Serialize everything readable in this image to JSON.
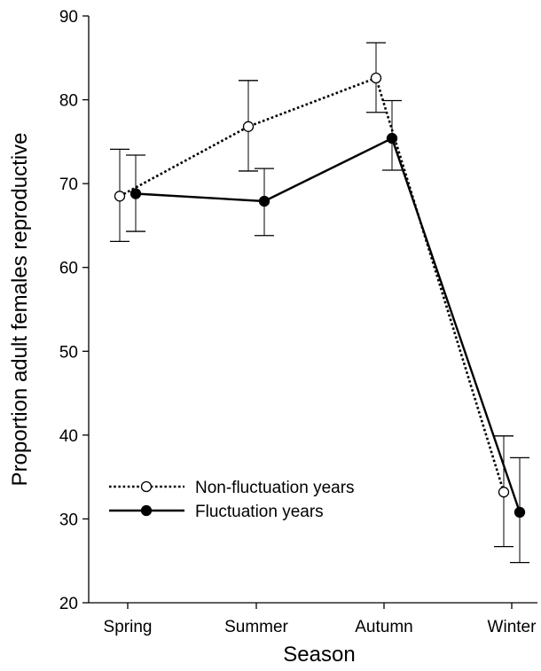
{
  "chart_data": {
    "type": "line",
    "title": "",
    "xlabel": "Season",
    "ylabel": "Proportion adult females reproductive",
    "categories": [
      "Spring",
      "Summer",
      "Autumn",
      "Winter"
    ],
    "ylim": [
      20,
      90
    ],
    "yticks": [
      20,
      30,
      40,
      50,
      60,
      70,
      80,
      90
    ],
    "ytick_labels": [
      "20",
      "30",
      "40",
      "50",
      "60",
      "70",
      "80",
      "90"
    ],
    "grid": false,
    "legend_position": "lower-left",
    "series": [
      {
        "name": "Non-fluctuation years",
        "style": "dotted",
        "marker": "open-circle",
        "color": "#000000",
        "values": [
          68.5,
          76.8,
          82.6,
          33.2
        ],
        "err_low": [
          63.1,
          71.5,
          78.5,
          26.7
        ],
        "err_high": [
          74.1,
          82.3,
          86.8,
          39.9
        ]
      },
      {
        "name": "Fluctuation years",
        "style": "solid",
        "marker": "filled-circle",
        "color": "#000000",
        "values": [
          68.8,
          67.9,
          75.4,
          30.8
        ],
        "err_low": [
          64.3,
          63.8,
          71.6,
          24.8
        ],
        "err_high": [
          73.4,
          71.8,
          79.9,
          37.3
        ]
      }
    ]
  }
}
